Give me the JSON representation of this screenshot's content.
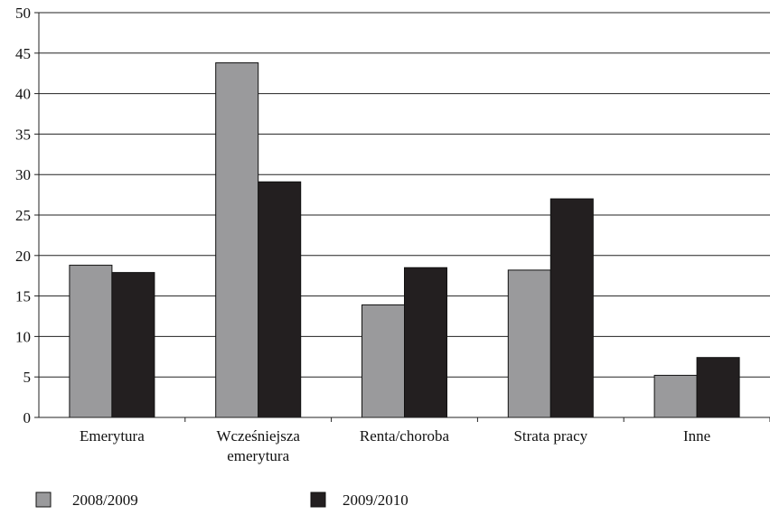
{
  "chart_data": {
    "type": "bar",
    "title": "",
    "xlabel": "",
    "ylabel": "",
    "ylim": [
      0,
      50
    ],
    "yticks": [
      0,
      5,
      10,
      15,
      20,
      25,
      30,
      35,
      40,
      45,
      50
    ],
    "grid": true,
    "legend_position": "bottom-left",
    "categories": [
      [
        "Emerytura"
      ],
      [
        "Wcześniejsza",
        "emerytura"
      ],
      [
        "Renta/choroba"
      ],
      [
        "Strata pracy"
      ],
      [
        "Inne"
      ]
    ],
    "series": [
      {
        "name": "2008/2009",
        "color": "#9a9a9c",
        "values": [
          18.8,
          43.8,
          13.9,
          18.2,
          5.2
        ]
      },
      {
        "name": "2009/2010",
        "color": "#231f20",
        "values": [
          17.9,
          29.1,
          18.5,
          27.0,
          7.4
        ]
      }
    ]
  }
}
